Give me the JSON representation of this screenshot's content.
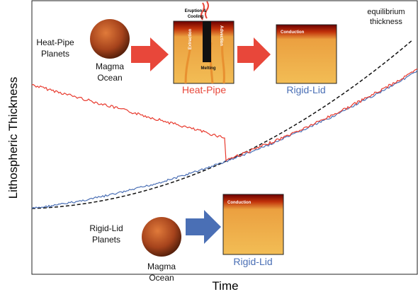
{
  "axes": {
    "y_label": "Lithospheric Thickness",
    "x_label": "Time"
  },
  "curves": {
    "equilibrium": [
      "equilibrium",
      "thickness"
    ]
  },
  "heat_pipe": {
    "planet_label": [
      "Heat-Pipe",
      "Planets"
    ],
    "ocean_label": [
      "Magma",
      "Ocean"
    ],
    "panel_title": "Heat-Pipe",
    "panel_texts": {
      "eruption": [
        "Eruption &",
        "Cooling"
      ],
      "advection": "Advection",
      "extraction": "Extraction",
      "melting": "Melting"
    },
    "next_title": "Rigid-Lid",
    "next_conduction": "Conduction"
  },
  "rigid_lid": {
    "planet_label": [
      "Rigid-Lid",
      "Planets"
    ],
    "ocean_label": [
      "Magma",
      "Ocean"
    ],
    "panel_title": "Rigid-Lid",
    "conduction": "Conduction"
  }
}
